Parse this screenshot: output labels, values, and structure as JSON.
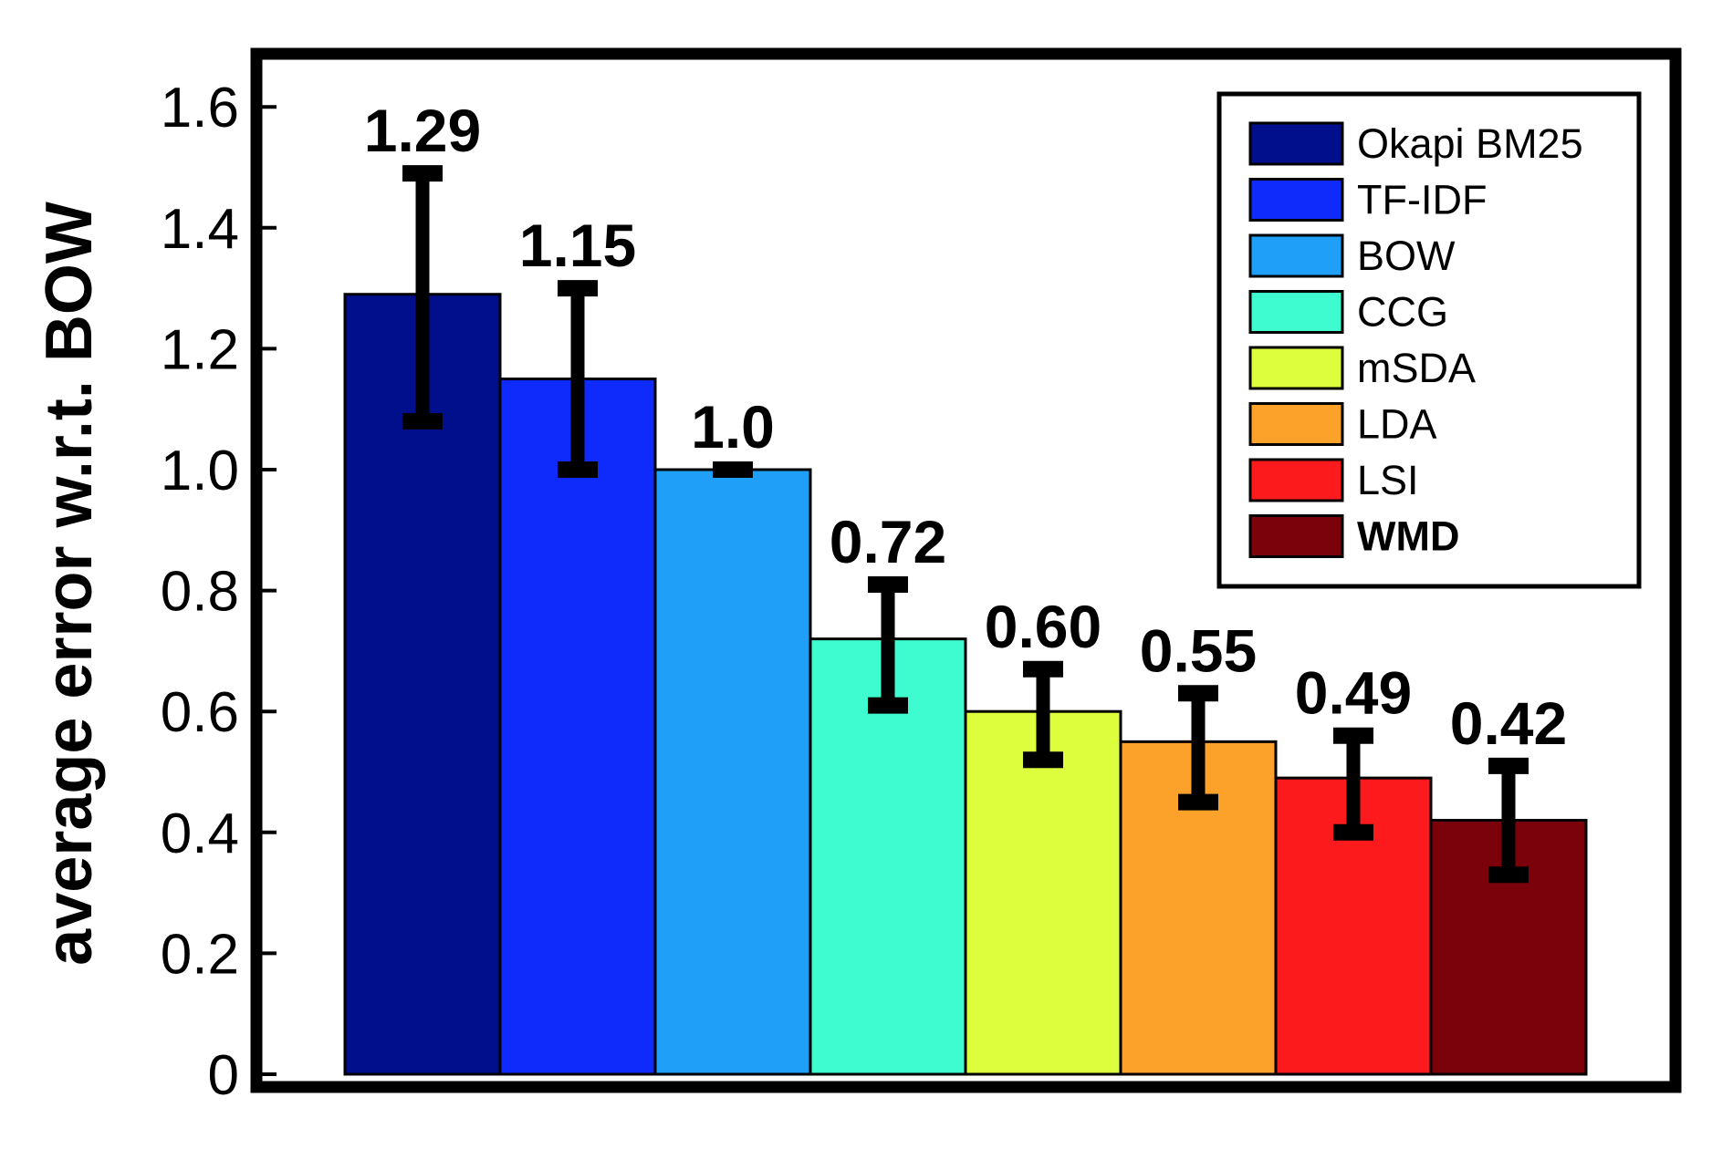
{
  "chart_data": {
    "type": "bar",
    "ylabel": "average error w.r.t. BOW",
    "ylim": [
      0,
      1.7
    ],
    "yticks": [
      0,
      0.2,
      0.4,
      0.6,
      0.8,
      1.0,
      1.2,
      1.4,
      1.6
    ],
    "ytick_labels": [
      "0",
      "0.2",
      "0.4",
      "0.6",
      "0.8",
      "1.0",
      "1.2",
      "1.4",
      "1.6"
    ],
    "grid": false,
    "legend_position": "top-right",
    "series": [
      {
        "name": "Okapi BM25",
        "value": 1.29,
        "label": "1.29",
        "err_low": 1.08,
        "err_high": 1.49,
        "color": "#020f8c",
        "bold": false
      },
      {
        "name": "TF-IDF",
        "value": 1.15,
        "label": "1.15",
        "err_low": 1.0,
        "err_high": 1.3,
        "color": "#0f2bfb",
        "bold": false
      },
      {
        "name": "BOW",
        "value": 1.0,
        "label": "1.0",
        "err_low": 1.0,
        "err_high": 1.0,
        "color": "#1f9ff8",
        "bold": false
      },
      {
        "name": "CCG",
        "value": 0.72,
        "label": "0.72",
        "err_low": 0.61,
        "err_high": 0.81,
        "color": "#3ffbd0",
        "bold": false
      },
      {
        "name": "mSDA",
        "value": 0.6,
        "label": "0.60",
        "err_low": 0.52,
        "err_high": 0.67,
        "color": "#ddfe3c",
        "bold": false
      },
      {
        "name": "LDA",
        "value": 0.55,
        "label": "0.55",
        "err_low": 0.45,
        "err_high": 0.63,
        "color": "#fca12a",
        "bold": false
      },
      {
        "name": "LSI",
        "value": 0.49,
        "label": "0.49",
        "err_low": 0.4,
        "err_high": 0.56,
        "color": "#fc1a1d",
        "bold": false
      },
      {
        "name": "WMD",
        "value": 0.42,
        "label": "0.42",
        "err_low": 0.33,
        "err_high": 0.51,
        "color": "#7b020a",
        "bold": true
      }
    ]
  }
}
